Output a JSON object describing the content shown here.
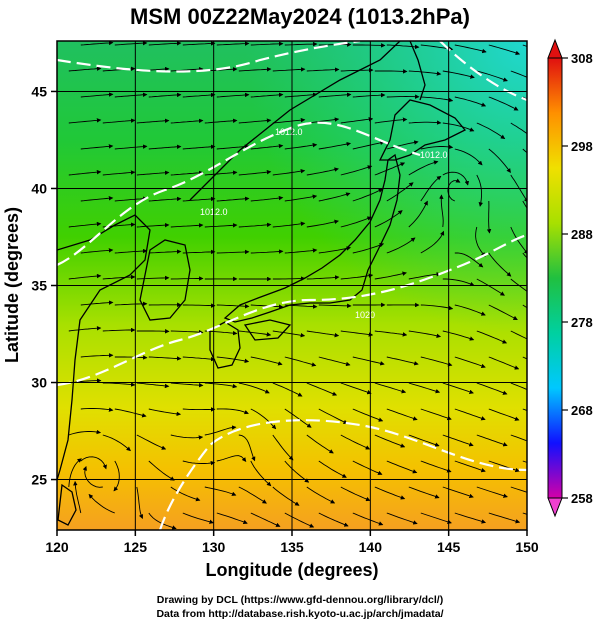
{
  "title": "MSM 00Z22May2024 (1013.2hPa)",
  "x_axis": {
    "label": "Longitude (degrees)",
    "range": [
      120,
      150
    ],
    "ticks": [
      120,
      125,
      130,
      135,
      140,
      145,
      150
    ],
    "tick_labels": [
      "120",
      "125",
      "130",
      "135",
      "140",
      "145",
      "150"
    ]
  },
  "y_axis": {
    "label": "Latitude  (degrees)",
    "range": [
      22.4,
      47.6
    ],
    "ticks": [
      25,
      30,
      35,
      40,
      45
    ],
    "tick_labels": [
      "25",
      "30",
      "35",
      "40",
      "45"
    ]
  },
  "grid": true,
  "colorbar": {
    "range": [
      258,
      308
    ],
    "ticks": [
      258,
      268,
      278,
      288,
      298,
      308
    ],
    "tick_labels": [
      "258",
      "268",
      "278",
      "288",
      "298",
      "308"
    ],
    "colors": [
      "#d400a8",
      "#1010ff",
      "#00c8ff",
      "#00d0a0",
      "#20c040",
      "#a8e000",
      "#f0e000",
      "#ff9000",
      "#e01010"
    ]
  },
  "contour_labels": [
    "1012.0",
    "1012.0",
    "1020",
    "1012.0"
  ],
  "credits": {
    "line1": "Drawing by DCL (https://www.gfd-dennou.org/library/dcl/)",
    "line2": "Data from http://database.rish.kyoto-u.ac.jp/arch/jmadata/"
  }
}
